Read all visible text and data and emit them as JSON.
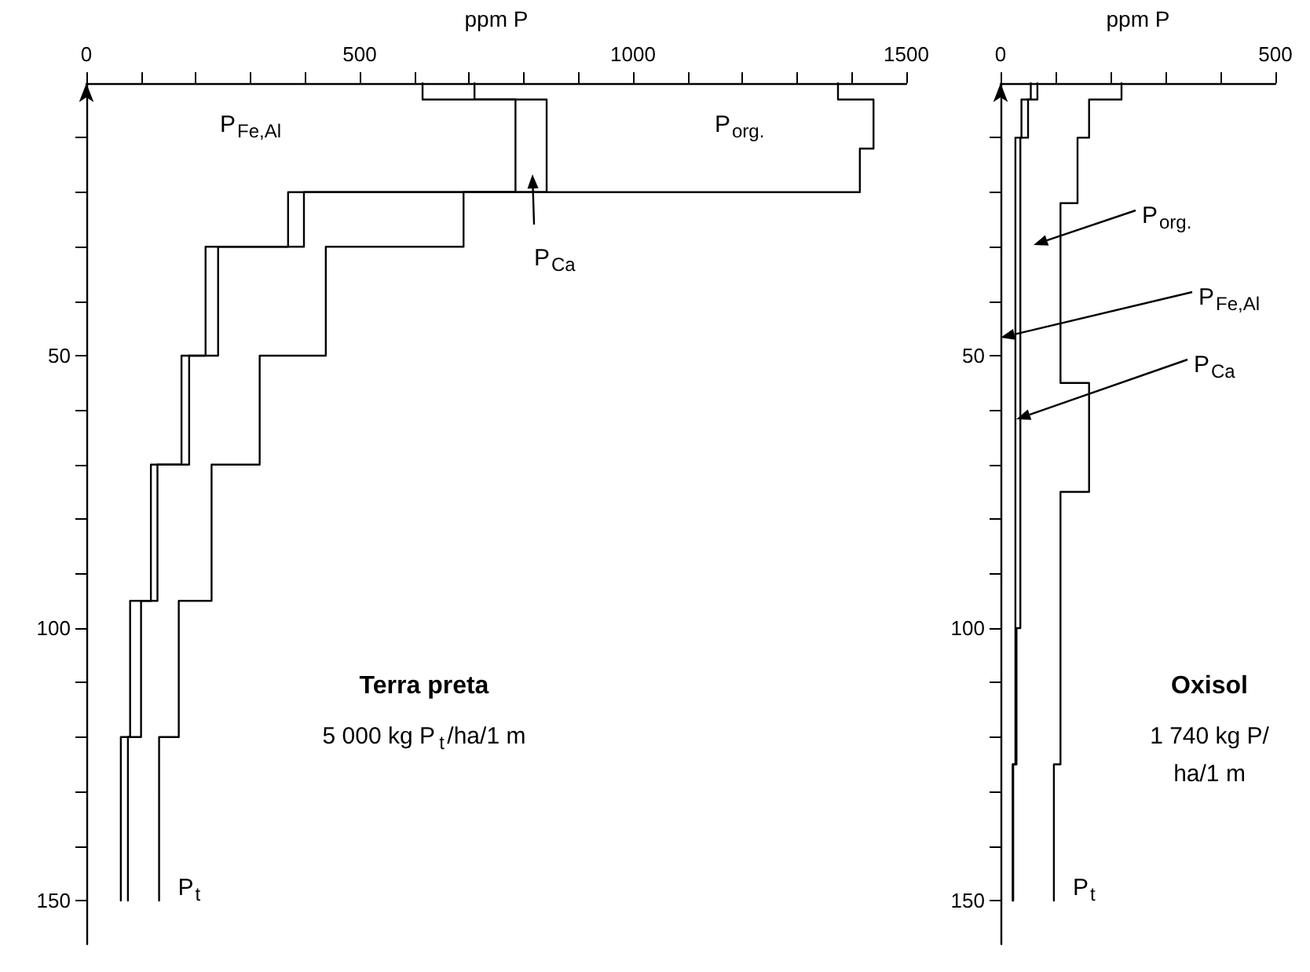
{
  "chart_data": [
    {
      "type": "line",
      "title": "Terra preta",
      "subtitle": "5 000 kg P$_{t}$/ha/1 m",
      "xlabel": "ppm P",
      "marker": "none",
      "line_style": "solid",
      "xlim": [
        0,
        1500
      ],
      "xticks": [
        0,
        {
          "value": 100,
          "label": null
        },
        {
          "value": 200,
          "label": null
        },
        {
          "value": 300,
          "label": null
        },
        {
          "value": 400,
          "label": null
        },
        500,
        {
          "value": 600,
          "label": null
        },
        {
          "value": 700,
          "label": null
        },
        {
          "value": 800,
          "label": null
        },
        {
          "value": 900,
          "label": null
        },
        1000,
        {
          "value": 1100,
          "label": null
        },
        {
          "value": 1200,
          "label": null
        },
        {
          "value": 1300,
          "label": null
        },
        {
          "value": 1400,
          "label": null
        },
        1500
      ],
      "ylim": [
        158,
        0
      ],
      "yticks": [
        {
          "value": 10,
          "label": null
        },
        {
          "value": 20,
          "label": null
        },
        {
          "value": 30,
          "label": null
        },
        {
          "value": 40,
          "label": null
        },
        50,
        {
          "value": 60,
          "label": null
        },
        {
          "value": 70,
          "label": null
        },
        {
          "value": 80,
          "label": null
        },
        {
          "value": 90,
          "label": null
        },
        100,
        {
          "value": 110,
          "label": null
        },
        {
          "value": 120,
          "label": null
        },
        {
          "value": 130,
          "label": null
        },
        {
          "value": 140,
          "label": null
        },
        150
      ],
      "series": [
        {
          "color": "#000000",
          "x": [
            615,
            615,
            785,
            785,
            369,
            369,
            218,
            218,
            174,
            174,
            118,
            118,
            80,
            80,
            63,
            63
          ],
          "values": [
            0,
            3,
            3,
            20,
            20,
            30,
            30,
            50,
            50,
            70,
            70,
            95,
            95,
            120,
            120,
            150
          ]
        },
        {
          "color": "#000000",
          "x": [
            710,
            710,
            842,
            842,
            398,
            398,
            241,
            241,
            188,
            188,
            130,
            130,
            100,
            100,
            76,
            76
          ],
          "values": [
            0,
            3,
            3,
            20,
            20,
            30,
            30,
            50,
            50,
            70,
            70,
            95,
            95,
            120,
            120,
            150
          ]
        },
        {
          "name": "P$_{t}$",
          "color": "#000000",
          "x": [
            1375,
            1375,
            1440,
            1440,
            1415,
            1415,
            690,
            690,
            438,
            438,
            317,
            317,
            229,
            229,
            169,
            169,
            133,
            133
          ],
          "values": [
            0,
            3,
            3,
            12,
            12,
            20,
            20,
            30,
            30,
            50,
            50,
            70,
            70,
            95,
            95,
            120,
            120,
            150
          ]
        }
      ],
      "annotations": [
        "P$_{Fe,Al}$",
        "P$_{org.}$",
        "P$_{Ca}$"
      ]
    },
    {
      "type": "line",
      "title": "Oxisol",
      "subtitle": "1 740 kg P/ha/1 m",
      "xlabel": "ppm P",
      "marker": "none",
      "line_style": "solid",
      "xlim": [
        0,
        500
      ],
      "xticks": [
        0,
        {
          "value": 100,
          "label": null
        },
        {
          "value": 200,
          "label": null
        },
        {
          "value": 300,
          "label": null
        },
        {
          "value": 400,
          "label": null
        },
        500
      ],
      "ylim": [
        158,
        0
      ],
      "yticks": [
        {
          "value": 10,
          "label": null
        },
        {
          "value": 20,
          "label": null
        },
        {
          "value": 30,
          "label": null
        },
        {
          "value": 40,
          "label": null
        },
        50,
        {
          "value": 60,
          "label": null
        },
        {
          "value": 70,
          "label": null
        },
        {
          "value": 80,
          "label": null
        },
        {
          "value": 90,
          "label": null
        },
        100,
        {
          "value": 110,
          "label": null
        },
        {
          "value": 120,
          "label": null
        },
        {
          "value": 130,
          "label": null
        },
        {
          "value": 140,
          "label": null
        },
        150
      ],
      "series": [
        {
          "color": "#000000",
          "x": [
            55,
            55,
            38,
            38,
            27,
            27,
            22,
            22
          ],
          "values": [
            0,
            3,
            3,
            10,
            10,
            125,
            125,
            150
          ]
        },
        {
          "color": "#000000",
          "x": [
            67,
            67,
            50,
            50,
            36,
            36,
            29,
            29,
            23,
            23
          ],
          "values": [
            0,
            3,
            3,
            10,
            10,
            100,
            100,
            125,
            125,
            150
          ]
        },
        {
          "name": "P$_{t}$",
          "color": "#000000",
          "x": [
            220,
            220,
            161,
            161,
            140,
            140,
            109,
            109,
            161,
            161,
            109,
            109,
            97,
            97
          ],
          "values": [
            0,
            3,
            3,
            10,
            10,
            22,
            22,
            55,
            55,
            75,
            75,
            125,
            125,
            150
          ]
        }
      ],
      "annotations": [
        "P$_{org.}$",
        "P$_{Fe,Al}$",
        "P$_{Ca}$"
      ]
    }
  ]
}
